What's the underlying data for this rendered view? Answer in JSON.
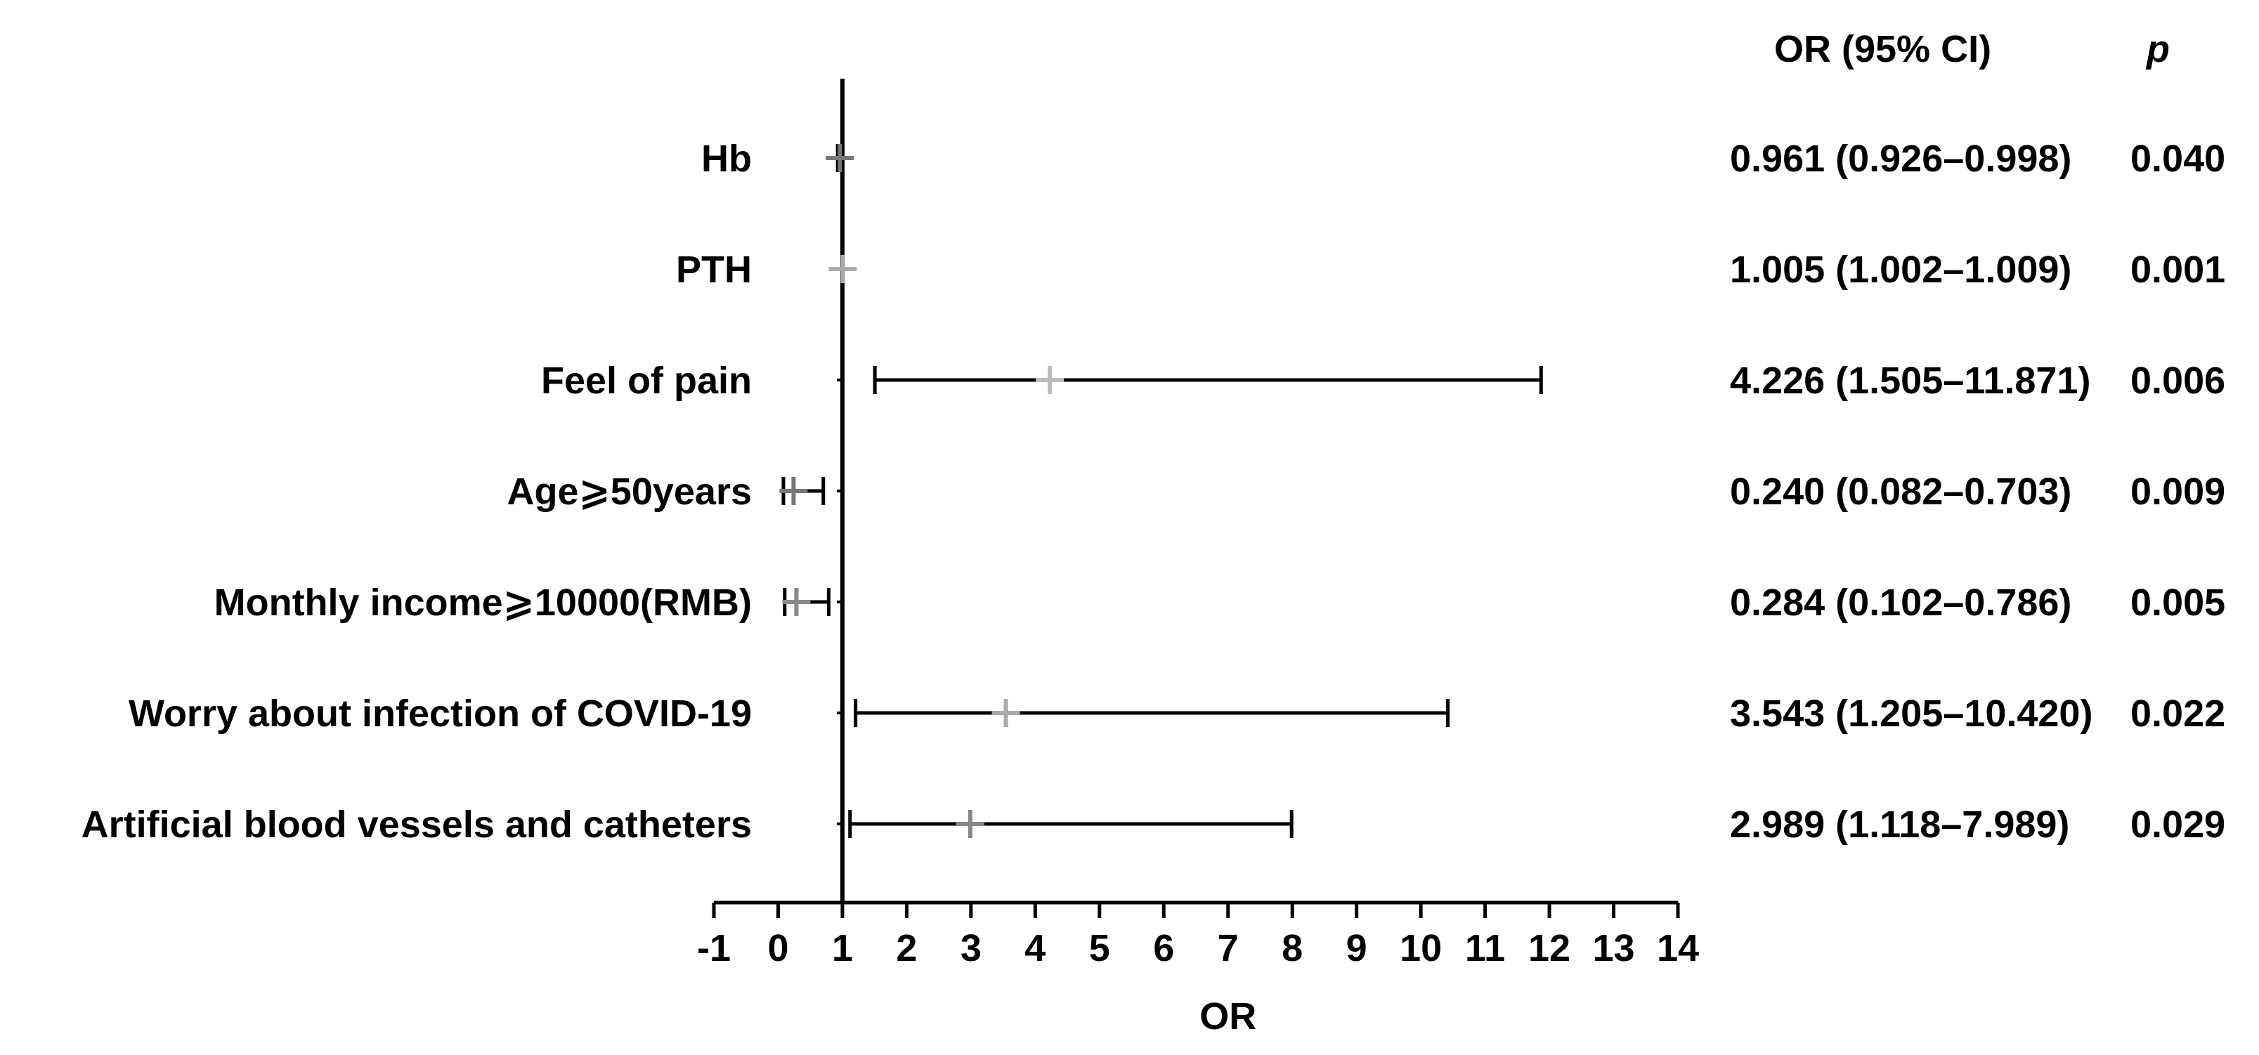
{
  "chart_data": {
    "type": "forest",
    "xlabel": "OR",
    "xlim": [
      -1,
      14
    ],
    "x_ticks": [
      -1,
      0,
      1,
      2,
      3,
      4,
      5,
      6,
      7,
      8,
      9,
      10,
      11,
      12,
      13,
      14
    ],
    "reference_line": 1,
    "columns": {
      "or_ci": "OR (95% CI)",
      "p": "p"
    },
    "rows": [
      {
        "label": "Hb",
        "or": 0.961,
        "lower": 0.926,
        "upper": 0.998,
        "or_ci_text": "0.961 (0.926–0.998)",
        "p_text": "0.040"
      },
      {
        "label": "PTH",
        "or": 1.005,
        "lower": 1.002,
        "upper": 1.009,
        "or_ci_text": "1.005 (1.002–1.009)",
        "p_text": "0.001"
      },
      {
        "label": "Feel of pain",
        "or": 4.226,
        "lower": 1.505,
        "upper": 11.871,
        "or_ci_text": "4.226 (1.505–11.871)",
        "p_text": "0.006"
      },
      {
        "label": "Age⩾50years",
        "or": 0.24,
        "lower": 0.082,
        "upper": 0.703,
        "or_ci_text": "0.240 (0.082–0.703)",
        "p_text": "0.009"
      },
      {
        "label": "Monthly income⩾10000(RMB)",
        "or": 0.284,
        "lower": 0.102,
        "upper": 0.786,
        "or_ci_text": "0.284 (0.102–0.786)",
        "p_text": "0.005"
      },
      {
        "label": "Worry about infection of COVID-19",
        "or": 3.543,
        "lower": 1.205,
        "upper": 10.42,
        "or_ci_text": "3.543 (1.205–10.420)",
        "p_text": "0.022"
      },
      {
        "label": "Artificial blood vessels and catheters",
        "or": 2.989,
        "lower": 1.118,
        "upper": 7.989,
        "or_ci_text": "2.989 (1.118–7.989)",
        "p_text": "0.029"
      }
    ],
    "marker_colors": [
      "#777777",
      "#aaaaaa",
      "#bbbbbb",
      "#777777",
      "#888888",
      "#aaaaaa",
      "#888888"
    ],
    "line_color": "#000000"
  }
}
